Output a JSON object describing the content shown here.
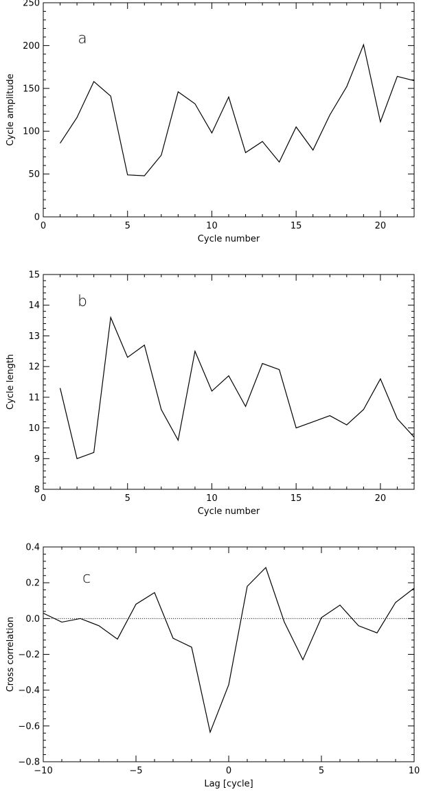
{
  "chart_data": [
    {
      "type": "line",
      "panel_label": "a",
      "xlabel": "Cycle number",
      "ylabel": "Cycle amplitude",
      "xlim": [
        0,
        22
      ],
      "ylim": [
        0,
        250
      ],
      "xticks": [
        0,
        5,
        10,
        15,
        20
      ],
      "yticks": [
        0,
        50,
        100,
        150,
        200,
        250
      ],
      "xtick_labels": [
        "0",
        "5",
        "10",
        "15",
        "20"
      ],
      "ytick_labels": [
        "0",
        "50",
        "100",
        "150",
        "200",
        "250"
      ],
      "series": [
        {
          "x": [
            1,
            2,
            3,
            4,
            5,
            6,
            7,
            8,
            9,
            10,
            11,
            12,
            13,
            14,
            15,
            16,
            17,
            18,
            19,
            20,
            21,
            22
          ],
          "y": [
            86,
            116,
            158,
            141,
            49,
            48,
            72,
            146,
            132,
            98,
            140,
            75,
            88,
            64,
            105,
            78,
            119,
            152,
            201,
            111,
            164,
            159
          ]
        }
      ]
    },
    {
      "type": "line",
      "panel_label": "b",
      "xlabel": "Cycle number",
      "ylabel": "Cycle length",
      "xlim": [
        0,
        22
      ],
      "ylim": [
        8,
        15
      ],
      "xticks": [
        0,
        5,
        10,
        15,
        20
      ],
      "yticks": [
        8,
        9,
        10,
        11,
        12,
        13,
        14,
        15
      ],
      "xtick_labels": [
        "0",
        "5",
        "10",
        "15",
        "20"
      ],
      "ytick_labels": [
        "8",
        "9",
        "10",
        "11",
        "12",
        "13",
        "14",
        "15"
      ],
      "series": [
        {
          "x": [
            1,
            2,
            3,
            4,
            5,
            6,
            7,
            8,
            9,
            10,
            11,
            12,
            13,
            14,
            15,
            16,
            17,
            18,
            19,
            20,
            21,
            22
          ],
          "y": [
            11.3,
            9.0,
            9.2,
            13.6,
            12.3,
            12.7,
            10.6,
            9.6,
            12.5,
            11.2,
            11.7,
            10.7,
            12.1,
            11.9,
            10.0,
            10.2,
            10.4,
            10.1,
            10.6,
            11.6,
            10.3,
            9.7
          ]
        }
      ]
    },
    {
      "type": "line",
      "panel_label": "c",
      "xlabel": "Lag [cycle]",
      "ylabel": "Cross correlation",
      "xlim": [
        -10,
        10
      ],
      "ylim": [
        -0.8,
        0.4
      ],
      "xticks": [
        -10,
        -5,
        0,
        5,
        10
      ],
      "yticks": [
        -0.8,
        -0.6,
        -0.4,
        -0.2,
        0.0,
        0.2,
        0.4
      ],
      "xtick_labels": [
        "−10",
        "−5",
        "0",
        "5",
        "10"
      ],
      "ytick_labels": [
        "−0.8",
        "−0.6",
        "−0.4",
        "−0.2",
        "0.0",
        "0.2",
        "0.4"
      ],
      "reference_line_y": 0,
      "series": [
        {
          "x": [
            -10,
            -9,
            -8,
            -7,
            -6,
            -5,
            -4,
            -3,
            -2,
            -1,
            0,
            1,
            2,
            3,
            4,
            5,
            6,
            7,
            8,
            9,
            10
          ],
          "y": [
            0.03,
            -0.02,
            0.0,
            -0.04,
            -0.115,
            0.08,
            0.145,
            -0.11,
            -0.16,
            -0.635,
            -0.37,
            0.18,
            0.285,
            -0.02,
            -0.23,
            0.005,
            0.075,
            -0.04,
            -0.08,
            0.09,
            0.17
          ]
        }
      ]
    }
  ]
}
